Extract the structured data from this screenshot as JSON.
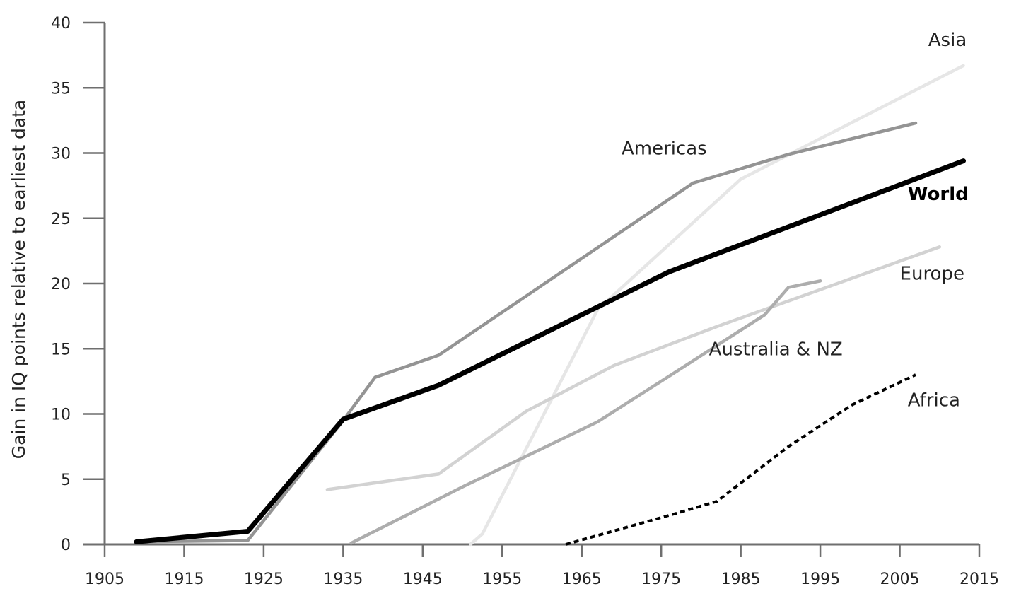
{
  "chart_data": {
    "type": "line",
    "title": "",
    "xlabel": "",
    "ylabel": "Gain in  IQ points relative to earliest data",
    "xlim": [
      1905,
      2015
    ],
    "ylim": [
      0,
      40
    ],
    "x_ticks": [
      1905,
      1915,
      1925,
      1935,
      1945,
      1955,
      1965,
      1975,
      1985,
      1995,
      2005,
      2015
    ],
    "y_ticks": [
      0,
      5,
      10,
      15,
      20,
      25,
      30,
      35,
      40
    ],
    "grid": false,
    "legend": "inline labels",
    "series": [
      {
        "name": "Asia",
        "color": "#e6e6e6",
        "style": "solid",
        "points": [
          [
            1951,
            0
          ],
          [
            1952.5,
            0.8
          ],
          [
            1967,
            18
          ],
          [
            1985,
            28
          ],
          [
            2013,
            36.7
          ]
        ]
      },
      {
        "name": "Americas",
        "color": "#949494",
        "style": "solid",
        "points": [
          [
            1909,
            0.2
          ],
          [
            1923,
            0.3
          ],
          [
            1935,
            9.5
          ],
          [
            1939,
            12.8
          ],
          [
            1947,
            14.5
          ],
          [
            1979,
            27.7
          ],
          [
            1991,
            29.9
          ],
          [
            2007,
            32.3
          ]
        ]
      },
      {
        "name": "Europe",
        "color": "#d2d2d2",
        "style": "solid",
        "points": [
          [
            1933,
            4.2
          ],
          [
            1947,
            5.4
          ],
          [
            1958,
            10.2
          ],
          [
            1969,
            13.7
          ],
          [
            1982,
            16.7
          ],
          [
            2010,
            22.8
          ]
        ]
      },
      {
        "name": "Australia & NZ",
        "color": "#adadad",
        "style": "solid",
        "points": [
          [
            1936,
            0.1
          ],
          [
            1950,
            4.4
          ],
          [
            1967,
            9.4
          ],
          [
            1976,
            12.9
          ],
          [
            1988,
            17.6
          ],
          [
            1991,
            19.7
          ],
          [
            1995,
            20.2
          ]
        ]
      },
      {
        "name": "Africa",
        "color": "#000000",
        "style": "dotted",
        "points": [
          [
            1963,
            0
          ],
          [
            1977,
            2.4
          ],
          [
            1982,
            3.3
          ],
          [
            1991,
            7.5
          ],
          [
            1999,
            10.7
          ],
          [
            2007,
            13
          ]
        ]
      },
      {
        "name": "World",
        "color": "#000000",
        "style": "bold",
        "points": [
          [
            1909,
            0.2
          ],
          [
            1923,
            1
          ],
          [
            1935,
            9.6
          ],
          [
            1947,
            12.2
          ],
          [
            1976,
            20.9
          ],
          [
            2013,
            29.4
          ]
        ]
      }
    ],
    "labels": [
      {
        "text": "Asia",
        "x": 2011,
        "y": 38.2,
        "anchor": "middle",
        "bold": false
      },
      {
        "text": "Americas",
        "x": 1970,
        "y": 29.9,
        "anchor": "start",
        "bold": false
      },
      {
        "text": "World",
        "x": 2006,
        "y": 26.4,
        "anchor": "start",
        "bold": true
      },
      {
        "text": "Europe",
        "x": 2005,
        "y": 20.3,
        "anchor": "start",
        "bold": false
      },
      {
        "text": "Australia & NZ",
        "x": 1981,
        "y": 14.5,
        "anchor": "start",
        "bold": false
      },
      {
        "text": "Africa",
        "x": 2006,
        "y": 10.6,
        "anchor": "start",
        "bold": false
      }
    ]
  }
}
